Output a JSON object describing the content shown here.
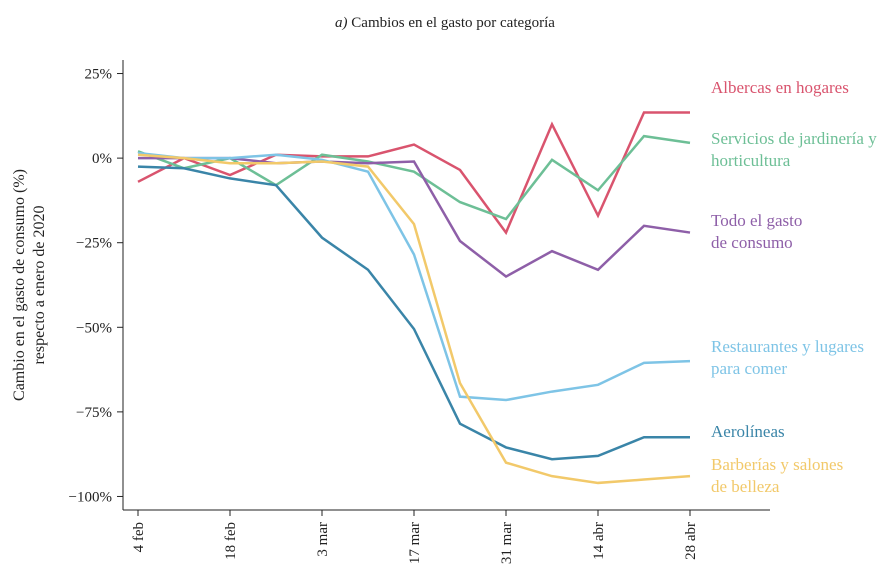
{
  "chart_data": {
    "type": "line",
    "title_prefix": "a)",
    "title": "Cambios en el gasto por categoría",
    "ylabel": [
      "Cambio en el gasto de consumo (%)",
      "respecto a enero de 2020"
    ],
    "categories": [
      "4 feb",
      null,
      "18 feb",
      null,
      "3 mar",
      null,
      "17 mar",
      null,
      "31 mar",
      null,
      "14 abr",
      null,
      "28 abr"
    ],
    "ylim": [
      -104,
      29
    ],
    "yticks": [
      {
        "value": 25,
        "label": "25%"
      },
      {
        "value": 0,
        "label": "0%"
      },
      {
        "value": -25,
        "label": "−25%"
      },
      {
        "value": -50,
        "label": "−50%"
      },
      {
        "value": -75,
        "label": "−75%"
      },
      {
        "value": -100,
        "label": "−100%"
      }
    ],
    "grid": false,
    "series": [
      {
        "name": "Albercas en hogares",
        "color": "#d9546e",
        "values": [
          -7,
          0,
          -5,
          1,
          0.5,
          0.5,
          4,
          -3.5,
          -22,
          10,
          -17,
          13.5,
          13.5
        ]
      },
      {
        "name": "Servicios de jardinería y horticultura",
        "color": "#6dbf96",
        "values": [
          2,
          -3,
          0,
          -8,
          1,
          -1,
          -4,
          -13,
          -18,
          -0.5,
          -9.5,
          6.5,
          4.5
        ]
      },
      {
        "name": "Todo el gasto de consumo",
        "color": "#8e5fa8",
        "values": [
          0,
          0,
          0,
          -1.5,
          -1,
          -1.5,
          -1,
          -24.5,
          -35,
          -27.5,
          -33,
          -20,
          -22
        ]
      },
      {
        "name": "Restaurantes y lugares para comer",
        "color": "#7ec4e6",
        "values": [
          1.5,
          0,
          0,
          1,
          -0.5,
          -4,
          -28.5,
          -70.5,
          -71.5,
          -69,
          -67,
          -60.5,
          -60
        ]
      },
      {
        "name": "Aerolíneas",
        "color": "#3a85a8",
        "values": [
          -2.5,
          -3,
          -6,
          -8,
          -23.5,
          -33,
          -50.5,
          -78.5,
          -85.5,
          -89,
          -88,
          -82.5,
          -82.5
        ]
      },
      {
        "name": "Barberías y salones de belleza",
        "color": "#f2c96a",
        "values": [
          1,
          0,
          -1.5,
          -1.5,
          -1,
          -2.5,
          -19.5,
          -66.5,
          -90,
          -94,
          -96,
          -95,
          -94
        ]
      }
    ]
  }
}
